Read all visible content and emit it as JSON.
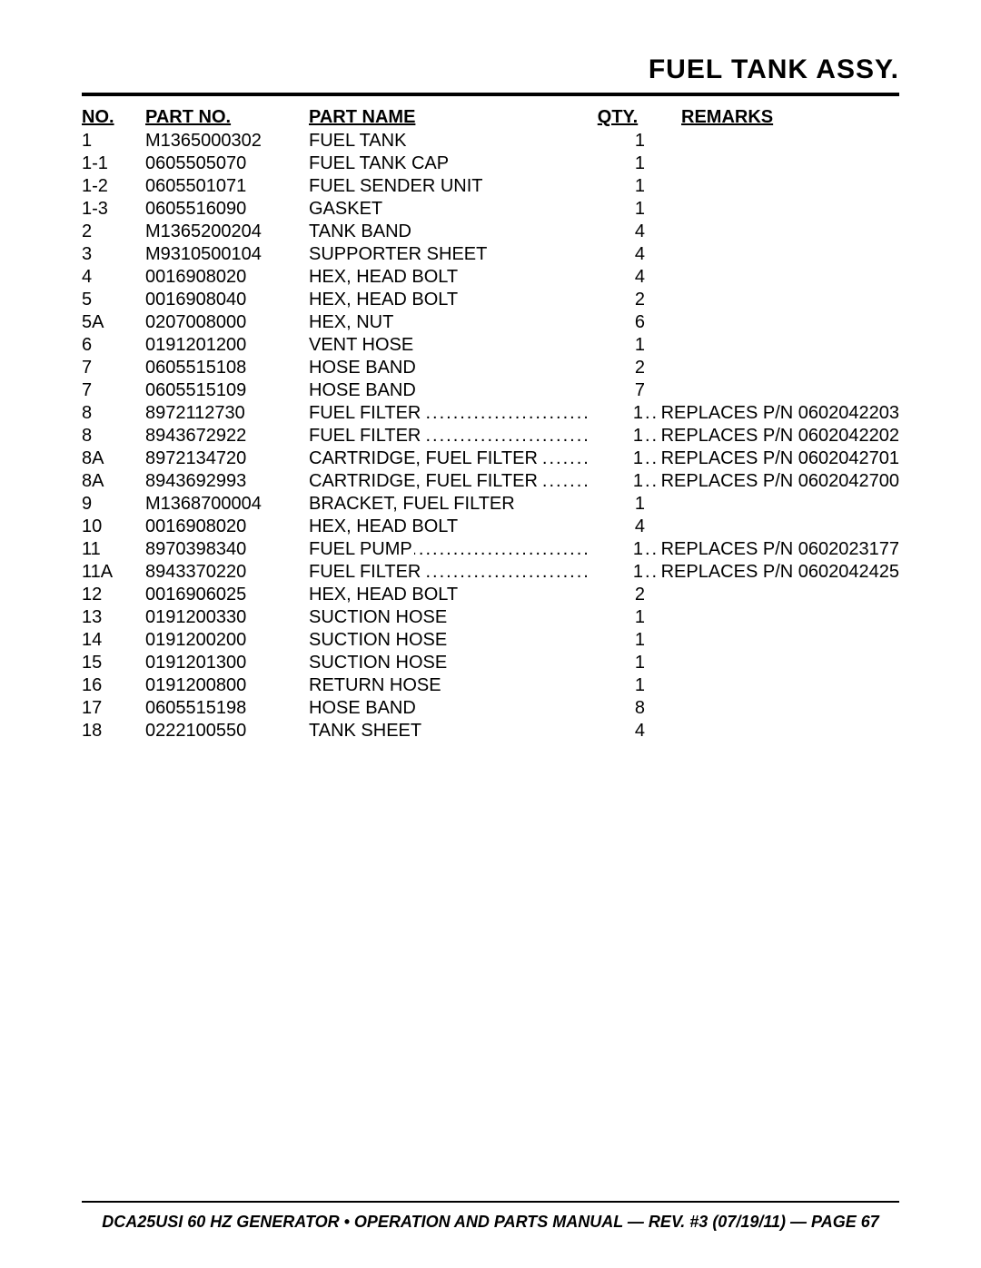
{
  "title": "FUEL TANK ASSY.",
  "footer": "DCA25USI 60 HZ GENERATOR • OPERATION AND PARTS MANUAL — REV. #3 (07/19/11) — PAGE 67",
  "headers": {
    "no": "NO.",
    "partno": "PART NO.",
    "partname": "PART NAME",
    "qty": "QTY.",
    "remarks": "REMARKS"
  },
  "rows": [
    {
      "no": "1",
      "partno": "M1365000302",
      "partname": "FUEL TANK",
      "qty": "1",
      "remarks": "",
      "dotted": false
    },
    {
      "no": "1-1",
      "partno": "0605505070",
      "partname": "FUEL TANK CAP",
      "qty": "1",
      "remarks": "",
      "dotted": false
    },
    {
      "no": "1-2",
      "partno": "0605501071",
      "partname": "FUEL SENDER UNIT",
      "qty": "1",
      "remarks": "",
      "dotted": false
    },
    {
      "no": "1-3",
      "partno": "0605516090",
      "partname": "GASKET",
      "qty": "1",
      "remarks": "",
      "dotted": false
    },
    {
      "no": "2",
      "partno": "M1365200204",
      "partname": "TANK BAND",
      "qty": "4",
      "remarks": "",
      "dotted": false
    },
    {
      "no": "3",
      "partno": "M9310500104",
      "partname": "SUPPORTER SHEET",
      "qty": "4",
      "remarks": "",
      "dotted": false
    },
    {
      "no": "4",
      "partno": "0016908020",
      "partname": "HEX, HEAD BOLT",
      "qty": "4",
      "remarks": "",
      "dotted": false
    },
    {
      "no": "5",
      "partno": "0016908040",
      "partname": "HEX, HEAD BOLT",
      "qty": "2",
      "remarks": "",
      "dotted": false
    },
    {
      "no": "5A",
      "partno": "0207008000",
      "partname": "HEX, NUT",
      "qty": "6",
      "remarks": "",
      "dotted": false
    },
    {
      "no": "6",
      "partno": "0191201200",
      "partname": "VENT HOSE",
      "qty": "1",
      "remarks": "",
      "dotted": false
    },
    {
      "no": "7",
      "partno": "0605515108",
      "partname": "HOSE BAND",
      "qty": "2",
      "remarks": "",
      "dotted": false
    },
    {
      "no": "7",
      "partno": "0605515109",
      "partname": "HOSE BAND",
      "qty": "7",
      "remarks": "",
      "dotted": false
    },
    {
      "no": "8",
      "partno": "8972112730",
      "partname": "FUEL FILTER",
      "qty": "1",
      "remarks": "REPLACES P/N 0602042203",
      "dotted": true
    },
    {
      "no": "8",
      "partno": "8943672922",
      "partname": "FUEL FILTER",
      "qty": "1",
      "remarks": "REPLACES P/N 0602042202",
      "dotted": true
    },
    {
      "no": "8A",
      "partno": "8972134720",
      "partname": "CARTRIDGE, FUEL FILTER",
      "qty": "1",
      "remarks": "REPLACES P/N 0602042701",
      "dotted": true
    },
    {
      "no": "8A",
      "partno": "8943692993",
      "partname": "CARTRIDGE, FUEL FILTER",
      "qty": "1",
      "remarks": "REPLACES P/N 0602042700",
      "dotted": true
    },
    {
      "no": "9",
      "partno": "M1368700004",
      "partname": "BRACKET, FUEL FILTER",
      "qty": "1",
      "remarks": "",
      "dotted": false
    },
    {
      "no": "10",
      "partno": "0016908020",
      "partname": "HEX, HEAD BOLT",
      "qty": "4",
      "remarks": "",
      "dotted": false
    },
    {
      "no": "11",
      "partno": "8970398340",
      "partname": "FUEL PUMP",
      "qty": "1",
      "remarks": "REPLACES P/N 0602023177",
      "dotted": true
    },
    {
      "no": "11A",
      "partno": "8943370220",
      "partname": "FUEL FILTER",
      "qty": "1",
      "remarks": "REPLACES P/N 0602042425",
      "dotted": true
    },
    {
      "no": "12",
      "partno": "0016906025",
      "partname": "HEX, HEAD BOLT",
      "qty": "2",
      "remarks": "",
      "dotted": false
    },
    {
      "no": "13",
      "partno": "0191200330",
      "partname": "SUCTION HOSE",
      "qty": "1",
      "remarks": "",
      "dotted": false
    },
    {
      "no": "14",
      "partno": "0191200200",
      "partname": "SUCTION HOSE",
      "qty": "1",
      "remarks": "",
      "dotted": false
    },
    {
      "no": "15",
      "partno": "0191201300",
      "partname": "SUCTION HOSE",
      "qty": "1",
      "remarks": "",
      "dotted": false
    },
    {
      "no": "16",
      "partno": "0191200800",
      "partname": "RETURN HOSE",
      "qty": "1",
      "remarks": "",
      "dotted": false
    },
    {
      "no": "17",
      "partno": "0605515198",
      "partname": "HOSE BAND",
      "qty": "8",
      "remarks": "",
      "dotted": false
    },
    {
      "no": "18",
      "partno": "0222100550",
      "partname": "TANK SHEET",
      "qty": "4",
      "remarks": "",
      "dotted": false
    }
  ]
}
